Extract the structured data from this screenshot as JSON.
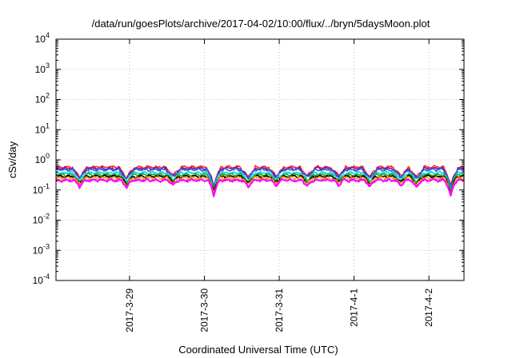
{
  "chart_data": {
    "type": "line",
    "title": "/data/run/goesPlots/archive/2017-04-02/10:00/flux/../bryn/5daysMoon.plot",
    "xlabel": "Coordinated Universal Time (UTC)",
    "ylabel": "cSv/day",
    "x_range": [
      "2017-03-28T00:25",
      "2017-04-02T11:15"
    ],
    "x_ticks": [
      {
        "label": "2017-3-29",
        "date": "2017-03-29T00:00"
      },
      {
        "label": "2017-3-30",
        "date": "2017-03-30T00:00"
      },
      {
        "label": "2017-3-31",
        "date": "2017-03-31T00:00"
      },
      {
        "label": "2017-4-1",
        "date": "2017-04-01T00:00"
      },
      {
        "label": "2017-4-2",
        "date": "2017-04-02T00:00"
      }
    ],
    "y_scale": "log",
    "ylim": [
      0.0001,
      10000
    ],
    "y_ticks": [
      {
        "base": "10",
        "exp": "-4",
        "value": 0.0001
      },
      {
        "base": "10",
        "exp": "-3",
        "value": 0.001
      },
      {
        "base": "10",
        "exp": "-2",
        "value": 0.01
      },
      {
        "base": "10",
        "exp": "-1",
        "value": 0.1
      },
      {
        "base": "10",
        "exp": "0",
        "value": 1
      },
      {
        "base": "10",
        "exp": "1",
        "value": 10
      },
      {
        "base": "10",
        "exp": "2",
        "value": 100
      },
      {
        "base": "10",
        "exp": "3",
        "value": 1000
      },
      {
        "base": "10",
        "exp": "4",
        "value": 10000
      }
    ],
    "grid": true,
    "series": [
      {
        "color": "#ff2a2a",
        "level": 0.58
      },
      {
        "color": "#7a1f7a",
        "level": 0.52
      },
      {
        "color": "#3355ff",
        "level": 0.47
      },
      {
        "color": "#00d6d6",
        "level": 0.37
      },
      {
        "color": "#1faa1f",
        "level": 0.32
      },
      {
        "color": "#000000",
        "level": 0.28
      },
      {
        "color": "#ffa500",
        "level": 0.25
      },
      {
        "color": "#ff00ff",
        "level": 0.21
      }
    ],
    "dips": [
      {
        "date": "2017-03-28T08:00",
        "factor": 0.55
      },
      {
        "date": "2017-03-28T23:00",
        "factor": 0.5
      },
      {
        "date": "2017-03-29T14:00",
        "factor": 0.62
      },
      {
        "date": "2017-03-30T03:00",
        "factor": 0.28
      },
      {
        "date": "2017-03-30T14:00",
        "factor": 0.55
      },
      {
        "date": "2017-03-30T23:00",
        "factor": 0.6
      },
      {
        "date": "2017-03-31T09:00",
        "factor": 0.58
      },
      {
        "date": "2017-03-31T19:00",
        "factor": 0.62
      },
      {
        "date": "2017-04-01T05:00",
        "factor": 0.55
      },
      {
        "date": "2017-04-01T15:00",
        "factor": 0.58
      },
      {
        "date": "2017-04-01T20:00",
        "factor": 0.52
      },
      {
        "date": "2017-04-02T07:00",
        "factor": 0.25
      }
    ]
  }
}
